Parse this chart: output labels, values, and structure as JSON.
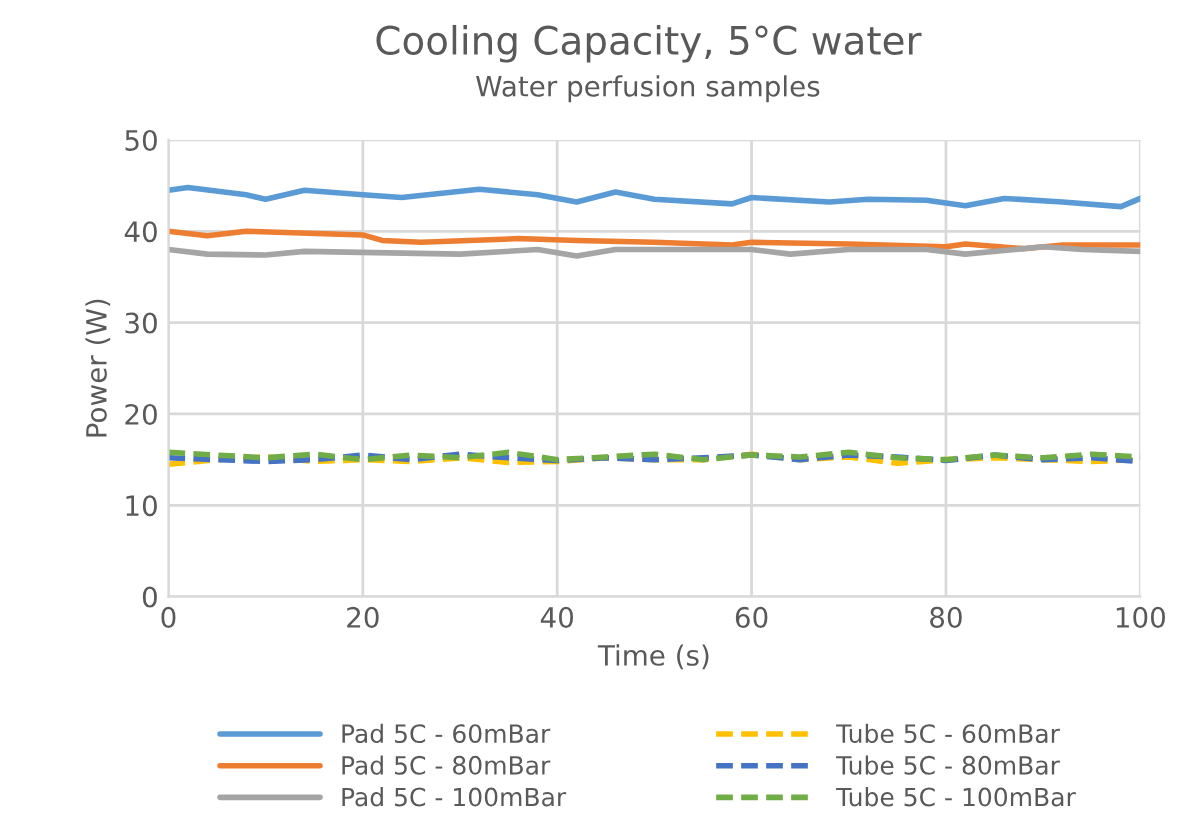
{
  "chart_data": {
    "type": "line",
    "title": "Cooling Capacity, 5°C water",
    "subtitle": "Water perfusion samples",
    "xlabel": "Time (s)",
    "ylabel": "Power (W)",
    "xlim": [
      0,
      100
    ],
    "xticks": [
      0,
      20,
      40,
      60,
      80,
      100
    ],
    "ylim": [
      0,
      50
    ],
    "yticks": [
      0,
      10,
      20,
      30,
      40,
      50
    ],
    "grid": true,
    "legend": "bottom",
    "marker": "none",
    "series": [
      {
        "name": "Pad 5C - 60mBar",
        "color": "#5b9bd5",
        "line_style": "solid",
        "x": [
          0,
          2,
          8,
          10,
          14,
          20,
          24,
          32,
          38,
          42,
          46,
          50,
          58,
          60,
          68,
          72,
          78,
          82,
          86,
          92,
          98,
          100
        ],
        "values": [
          44.5,
          44.8,
          44.0,
          43.5,
          44.5,
          44.0,
          43.7,
          44.6,
          44.0,
          43.2,
          44.3,
          43.5,
          43.0,
          43.7,
          43.2,
          43.5,
          43.4,
          42.8,
          43.6,
          43.2,
          42.7,
          43.6
        ]
      },
      {
        "name": "Pad 5C - 80mBar",
        "color": "#ed7d31",
        "line_style": "solid",
        "x": [
          0,
          4,
          8,
          20,
          22,
          26,
          36,
          42,
          50,
          58,
          60,
          70,
          80,
          82,
          88,
          92,
          100
        ],
        "values": [
          40.0,
          39.5,
          40.0,
          39.6,
          39.0,
          38.8,
          39.2,
          39.0,
          38.8,
          38.5,
          38.8,
          38.6,
          38.3,
          38.6,
          38.1,
          38.5,
          38.5
        ]
      },
      {
        "name": "Pad 5C - 100mBar",
        "color": "#a5a5a5",
        "line_style": "solid",
        "x": [
          0,
          4,
          10,
          14,
          30,
          38,
          42,
          46,
          60,
          64,
          70,
          78,
          82,
          90,
          94,
          100
        ],
        "values": [
          38.0,
          37.5,
          37.4,
          37.8,
          37.5,
          38.0,
          37.3,
          38.0,
          38.0,
          37.5,
          38.0,
          38.0,
          37.5,
          38.3,
          38.0,
          37.8
        ]
      },
      {
        "name": "Tube 5C - 60mBar",
        "color": "#ffc000",
        "line_style": "dashed",
        "x": [
          0,
          5,
          10,
          15,
          20,
          25,
          30,
          35,
          40,
          45,
          50,
          55,
          60,
          65,
          70,
          75,
          80,
          85,
          90,
          95,
          100
        ],
        "values": [
          14.5,
          15.0,
          15.3,
          14.8,
          15.0,
          14.8,
          15.2,
          14.7,
          14.8,
          15.2,
          15.0,
          15.0,
          15.6,
          15.0,
          15.3,
          14.6,
          15.0,
          15.2,
          15.0,
          14.8,
          15.0
        ]
      },
      {
        "name": "Tube 5C - 80mBar",
        "color": "#4472c4",
        "line_style": "dashed",
        "x": [
          0,
          5,
          10,
          15,
          20,
          25,
          30,
          35,
          40,
          45,
          50,
          55,
          60,
          65,
          70,
          75,
          80,
          85,
          90,
          95,
          100
        ],
        "values": [
          15.2,
          15.0,
          14.8,
          15.0,
          15.5,
          15.0,
          15.6,
          15.2,
          14.9,
          15.2,
          15.0,
          15.2,
          15.5,
          15.0,
          15.5,
          15.3,
          14.9,
          15.5,
          15.0,
          15.2,
          14.8
        ]
      },
      {
        "name": "Tube 5C - 100mBar",
        "color": "#70ad47",
        "line_style": "dashed",
        "x": [
          0,
          5,
          10,
          15,
          20,
          25,
          30,
          35,
          40,
          45,
          50,
          55,
          60,
          65,
          70,
          75,
          80,
          85,
          90,
          95,
          100
        ],
        "values": [
          15.8,
          15.5,
          15.2,
          15.6,
          15.0,
          15.5,
          15.2,
          15.8,
          15.0,
          15.3,
          15.6,
          15.0,
          15.5,
          15.3,
          15.8,
          15.2,
          15.0,
          15.5,
          15.2,
          15.6,
          15.3
        ]
      }
    ]
  }
}
